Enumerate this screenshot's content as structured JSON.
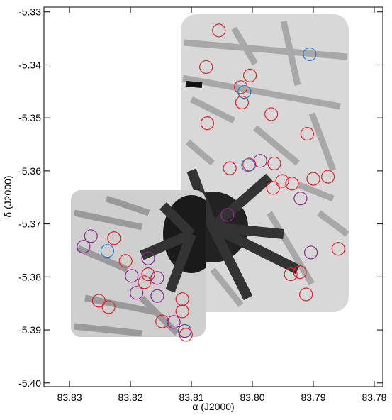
{
  "chart_data": {
    "type": "scatter",
    "xlabel": "α (J2000)",
    "ylabel": "δ (J2000)",
    "xlim": [
      83.8342,
      83.7786
    ],
    "ylim": [
      -5.4007,
      -5.3291
    ],
    "xticks": [
      83.83,
      83.82,
      83.81,
      {
        "value": 83.8,
        "label": "83.80"
      },
      83.79,
      83.78
    ],
    "yticks": [
      -5.33,
      -5.34,
      -5.35,
      -5.36,
      -5.37,
      -5.38,
      -5.39,
      {
        "value": -5.4,
        "label": "-5.40"
      }
    ],
    "series": [
      {
        "color": "#e8202a",
        "x": [
          83.8055,
          83.8076,
          83.8004,
          83.8019,
          83.8017,
          83.7969,
          83.8074,
          83.791,
          83.8037,
          83.8005,
          83.7964,
          83.7951,
          83.7966,
          83.7935,
          83.79,
          83.7876,
          83.8227,
          83.8208,
          83.8171,
          83.8177,
          83.8115,
          83.8115,
          83.8252,
          83.8236,
          83.7859,
          83.7922,
          83.7937,
          83.7912,
          83.8148,
          83.8109
        ],
        "values": [
          -5.3335,
          -5.3404,
          -5.342,
          -5.3442,
          -5.3471,
          -5.3493,
          -5.351,
          -5.353,
          -5.3595,
          -5.3588,
          -5.3586,
          -5.3619,
          -5.3632,
          -5.3624,
          -5.3615,
          -5.3611,
          -5.3727,
          -5.377,
          -5.3795,
          -5.381,
          -5.3842,
          -5.3865,
          -5.3845,
          -5.3857,
          -5.3747,
          -5.3791,
          -5.3795,
          -5.3833,
          -5.3884,
          -5.3909
        ]
      },
      {
        "color": "#2a7fd4",
        "x": [
          83.7906,
          83.8013,
          83.8007,
          83.8238
        ],
        "values": [
          -5.338,
          -5.3451,
          -5.3589,
          -5.3751
        ]
      },
      {
        "color": "#8e2a8e",
        "x": [
          83.7987,
          83.7921,
          83.8041,
          83.8265,
          83.8277,
          83.8171,
          83.8198,
          83.8156,
          83.819,
          83.8156,
          83.7904,
          83.8129,
          83.8111
        ],
        "values": [
          -5.3581,
          -5.3652,
          -5.3683,
          -5.3723,
          -5.3743,
          -5.3765,
          -5.3798,
          -5.3802,
          -5.383,
          -5.3836,
          -5.3754,
          -5.3885,
          -5.3902
        ]
      }
    ]
  }
}
